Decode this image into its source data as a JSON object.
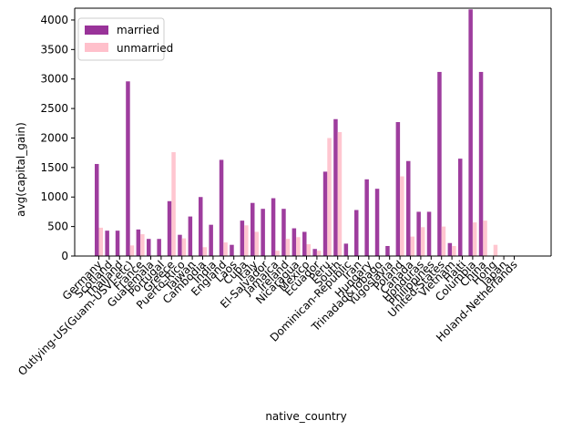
{
  "chart_data": {
    "type": "bar",
    "title": "",
    "xlabel": "native_country",
    "ylabel": "avg(capital_gain)",
    "ylim": [
      0,
      4200
    ],
    "yticks": [
      0,
      500,
      1000,
      1500,
      2000,
      2500,
      3000,
      3500,
      4000
    ],
    "grid": false,
    "legend_position": "top-left",
    "categories": [
      "Germany",
      "Scotland",
      "Thailand",
      "Outlying-US(Guam-USVI-etc)",
      "France",
      "Guatemala",
      "Portugal",
      "Greece",
      "Puerto-Rico",
      "Taiwan",
      "Cambodia",
      "India",
      "England",
      "Laos",
      "Cuba",
      "Italy",
      "El-Salvador",
      "Jamaica",
      "Ireland",
      "Nicaragua",
      "Mexico",
      "Ecuador",
      "Peru",
      "South",
      "Dominican-Republic",
      "Iran",
      "Hungary",
      "Trinadad&Tobago",
      "Yugoslavia",
      "Poland",
      "Canada",
      "Honduras",
      "Philippines",
      "United-States",
      "Vietnam",
      "Haiti",
      "Columbia",
      "China",
      "Hong",
      "Japan",
      "Holand-Netherlands"
    ],
    "series": [
      {
        "name": "married",
        "color": "#993399",
        "values": [
          1560,
          430,
          430,
          2960,
          450,
          290,
          290,
          930,
          360,
          670,
          1000,
          530,
          1630,
          190,
          600,
          900,
          800,
          980,
          800,
          470,
          410,
          120,
          1430,
          2320,
          210,
          780,
          1300,
          1140,
          170,
          2270,
          1610,
          750,
          750,
          3120,
          220,
          1650,
          4180,
          3120,
          0,
          0,
          0
        ]
      },
      {
        "name": "unmarried",
        "color": "#ffc0cb",
        "values": [
          480,
          0,
          0,
          180,
          370,
          0,
          0,
          1760,
          300,
          0,
          150,
          0,
          230,
          0,
          520,
          410,
          0,
          90,
          290,
          320,
          200,
          90,
          2000,
          2100,
          0,
          0,
          0,
          0,
          0,
          1350,
          330,
          490,
          0,
          500,
          170,
          0,
          570,
          600,
          190,
          0,
          0
        ]
      }
    ]
  }
}
